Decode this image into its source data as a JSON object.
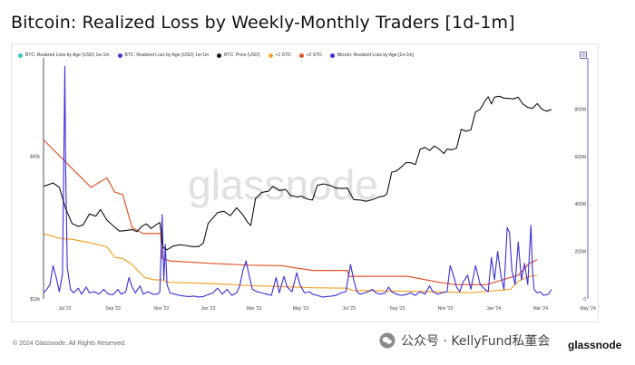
{
  "title": "Bitcoin: Realized Loss by Weekly-Monthly Traders [1d-1m]",
  "legend": [
    {
      "label": "BTC: Realized Loss by Age (USD) 1w-1m",
      "color": "#39c5c0"
    },
    {
      "label": "BTC: Realized Loss by Age (USD) 1w-1m",
      "color": "#3b3bd1"
    },
    {
      "label": "BTC: Price (USD)",
      "color": "#111111"
    },
    {
      "label": "+1 STD",
      "color": "#f2a32b"
    },
    {
      "label": "+2 STD",
      "color": "#e0552b"
    },
    {
      "label": "Bitcoin: Realized Loss by Age [1d-1m]",
      "color": "#3a2fd8"
    }
  ],
  "watermark": "glassnode",
  "footer": {
    "copyright": "© 2024 Glassnode. All Rights Reserved.",
    "wechat_text": "公众号 · KellyFund私董会",
    "brand": "glassnode"
  },
  "chart_data": {
    "type": "line",
    "x_tick_labels": [
      "Jul '22",
      "Sep '22",
      "Nov '22",
      "Jan '23",
      "Mar '23",
      "May '23",
      "Jul '23",
      "Sep '23",
      "Nov '23",
      "Jan '24",
      "Mar '24",
      "May '24"
    ],
    "left_axis_ticks": [
      "$40k",
      "$10k"
    ],
    "right_axis_ticks": [
      "0",
      "200M",
      "400M",
      "600M",
      "800M"
    ],
    "left_axis_scale": "log",
    "right_axis_range": [
      0,
      1000
    ],
    "left_axis_range": [
      10,
      100
    ],
    "x_range": [
      0,
      730
    ],
    "series": [
      {
        "name": "BTC: Price (USD)",
        "axis": "left",
        "color": "#111111",
        "points": [
          [
            0,
            29.8
          ],
          [
            12,
            30.8
          ],
          [
            20,
            29.5
          ],
          [
            28,
            24
          ],
          [
            36,
            20.8
          ],
          [
            44,
            20.2
          ],
          [
            50,
            20.5
          ],
          [
            58,
            22.8
          ],
          [
            66,
            22.3
          ],
          [
            72,
            23.8
          ],
          [
            80,
            21.5
          ],
          [
            88,
            20.3
          ],
          [
            96,
            19.3
          ],
          [
            104,
            19.4
          ],
          [
            112,
            19.6
          ],
          [
            118,
            19.2
          ],
          [
            124,
            20.2
          ],
          [
            130,
            20.7
          ],
          [
            136,
            19.8
          ],
          [
            142,
            20.5
          ],
          [
            147,
            21.0
          ],
          [
            151,
            16.5
          ],
          [
            156,
            16.1
          ],
          [
            164,
            16.7
          ],
          [
            172,
            16.9
          ],
          [
            180,
            16.8
          ],
          [
            188,
            16.6
          ],
          [
            196,
            16.6
          ],
          [
            202,
            17.2
          ],
          [
            208,
            20.8
          ],
          [
            214,
            21.9
          ],
          [
            220,
            23.1
          ],
          [
            228,
            23.4
          ],
          [
            236,
            22.4
          ],
          [
            244,
            24.2
          ],
          [
            252,
            22.6
          ],
          [
            258,
            21.0
          ],
          [
            262,
            20.4
          ],
          [
            268,
            26.5
          ],
          [
            276,
            28.1
          ],
          [
            284,
            28.4
          ],
          [
            290,
            29.8
          ],
          [
            298,
            28.6
          ],
          [
            306,
            28.9
          ],
          [
            312,
            27.3
          ],
          [
            320,
            26.9
          ],
          [
            326,
            27.1
          ],
          [
            334,
            26.3
          ],
          [
            340,
            26.1
          ],
          [
            346,
            30.1
          ],
          [
            354,
            30.5
          ],
          [
            362,
            30.1
          ],
          [
            370,
            29.3
          ],
          [
            378,
            29.2
          ],
          [
            384,
            29.3
          ],
          [
            392,
            26.2
          ],
          [
            400,
            26.1
          ],
          [
            408,
            25.8
          ],
          [
            416,
            26.2
          ],
          [
            424,
            26.9
          ],
          [
            430,
            27.1
          ],
          [
            434,
            27.7
          ],
          [
            440,
            34.2
          ],
          [
            446,
            34.6
          ],
          [
            452,
            35.9
          ],
          [
            458,
            37.5
          ],
          [
            464,
            37.5
          ],
          [
            470,
            36.8
          ],
          [
            476,
            42.7
          ],
          [
            482,
            43.5
          ],
          [
            488,
            42.2
          ],
          [
            494,
            44.1
          ],
          [
            500,
            42.8
          ],
          [
            506,
            41.0
          ],
          [
            510,
            42.8
          ],
          [
            516,
            42.5
          ],
          [
            522,
            43.2
          ],
          [
            528,
            51.8
          ],
          [
            534,
            50.9
          ],
          [
            540,
            51.5
          ],
          [
            546,
            61.3
          ],
          [
            552,
            63.0
          ],
          [
            558,
            68.3
          ],
          [
            562,
            71.1
          ],
          [
            566,
            66.3
          ],
          [
            570,
            70.8
          ],
          [
            576,
            71.4
          ],
          [
            582,
            70.2
          ],
          [
            588,
            69.9
          ],
          [
            594,
            69.6
          ],
          [
            600,
            70.8
          ],
          [
            606,
            66.2
          ],
          [
            612,
            64.1
          ],
          [
            618,
            63.5
          ],
          [
            624,
            66.5
          ],
          [
            630,
            63.0
          ],
          [
            636,
            61.8
          ],
          [
            642,
            62.9
          ]
        ]
      },
      {
        "name": "+2 STD",
        "axis": "right",
        "color": "#e0552b",
        "points": [
          [
            0,
            670
          ],
          [
            60,
            470
          ],
          [
            80,
            510
          ],
          [
            90,
            450
          ],
          [
            100,
            440
          ],
          [
            112,
            300
          ],
          [
            126,
            275
          ],
          [
            148,
            275
          ],
          [
            150,
            170
          ],
          [
            160,
            160
          ],
          [
            210,
            150
          ],
          [
            260,
            142
          ],
          [
            300,
            140
          ],
          [
            340,
            120
          ],
          [
            384,
            120
          ],
          [
            386,
            95
          ],
          [
            460,
            95
          ],
          [
            500,
            70
          ],
          [
            520,
            60
          ],
          [
            560,
            60
          ],
          [
            600,
            100
          ],
          [
            614,
            150
          ],
          [
            624,
            165
          ]
        ]
      },
      {
        "name": "+1 STD",
        "axis": "right",
        "color": "#f2a32b",
        "points": [
          [
            0,
            275
          ],
          [
            20,
            255
          ],
          [
            38,
            250
          ],
          [
            60,
            235
          ],
          [
            80,
            220
          ],
          [
            90,
            175
          ],
          [
            100,
            170
          ],
          [
            110,
            150
          ],
          [
            128,
            90
          ],
          [
            140,
            80
          ],
          [
            150,
            80
          ],
          [
            158,
            70
          ],
          [
            210,
            65
          ],
          [
            260,
            56
          ],
          [
            300,
            52
          ],
          [
            340,
            47
          ],
          [
            384,
            45
          ],
          [
            390,
            36
          ],
          [
            460,
            32
          ],
          [
            500,
            30
          ],
          [
            540,
            26
          ],
          [
            590,
            40
          ],
          [
            600,
            75
          ],
          [
            614,
            95
          ],
          [
            624,
            100
          ]
        ]
      },
      {
        "name": "Bitcoin: Realized Loss by Age [1d-1m]",
        "axis": "right",
        "color": "#3a2fd8",
        "points": [
          [
            0,
            25
          ],
          [
            4,
            40
          ],
          [
            8,
            60
          ],
          [
            12,
            140
          ],
          [
            16,
            90
          ],
          [
            20,
            30
          ],
          [
            24,
            105
          ],
          [
            27,
            980
          ],
          [
            28,
            540
          ],
          [
            30,
            130
          ],
          [
            34,
            40
          ],
          [
            38,
            25
          ],
          [
            44,
            45
          ],
          [
            48,
            20
          ],
          [
            54,
            50
          ],
          [
            58,
            25
          ],
          [
            64,
            30
          ],
          [
            70,
            20
          ],
          [
            76,
            40
          ],
          [
            82,
            20
          ],
          [
            88,
            18
          ],
          [
            94,
            40
          ],
          [
            98,
            20
          ],
          [
            104,
            30
          ],
          [
            108,
            90
          ],
          [
            112,
            50
          ],
          [
            116,
            25
          ],
          [
            122,
            55
          ],
          [
            126,
            20
          ],
          [
            132,
            30
          ],
          [
            138,
            20
          ],
          [
            144,
            20
          ],
          [
            147,
            30
          ],
          [
            150,
            355
          ],
          [
            151,
            200
          ],
          [
            152,
            80
          ],
          [
            154,
            230
          ],
          [
            156,
            60
          ],
          [
            160,
            25
          ],
          [
            166,
            20
          ],
          [
            172,
            15
          ],
          [
            178,
            12
          ],
          [
            184,
            10
          ],
          [
            190,
            12
          ],
          [
            196,
            8
          ],
          [
            202,
            10
          ],
          [
            208,
            18
          ],
          [
            214,
            25
          ],
          [
            220,
            45
          ],
          [
            226,
            20
          ],
          [
            232,
            40
          ],
          [
            238,
            15
          ],
          [
            244,
            25
          ],
          [
            248,
            55
          ],
          [
            252,
            120
          ],
          [
            256,
            160
          ],
          [
            260,
            95
          ],
          [
            264,
            40
          ],
          [
            270,
            30
          ],
          [
            276,
            25
          ],
          [
            282,
            20
          ],
          [
            288,
            15
          ],
          [
            294,
            90
          ],
          [
            298,
            25
          ],
          [
            304,
            95
          ],
          [
            308,
            50
          ],
          [
            314,
            30
          ],
          [
            320,
            110
          ],
          [
            324,
            60
          ],
          [
            330,
            25
          ],
          [
            336,
            30
          ],
          [
            340,
            20
          ],
          [
            346,
            15
          ],
          [
            352,
            8
          ],
          [
            358,
            10
          ],
          [
            364,
            12
          ],
          [
            370,
            15
          ],
          [
            376,
            25
          ],
          [
            382,
            30
          ],
          [
            388,
            145
          ],
          [
            392,
            80
          ],
          [
            396,
            30
          ],
          [
            400,
            20
          ],
          [
            406,
            25
          ],
          [
            410,
            30
          ],
          [
            416,
            40
          ],
          [
            420,
            25
          ],
          [
            426,
            20
          ],
          [
            432,
            25
          ],
          [
            436,
            50
          ],
          [
            440,
            30
          ],
          [
            446,
            20
          ],
          [
            452,
            15
          ],
          [
            458,
            18
          ],
          [
            464,
            25
          ],
          [
            470,
            15
          ],
          [
            476,
            30
          ],
          [
            482,
            20
          ],
          [
            488,
            55
          ],
          [
            492,
            30
          ],
          [
            498,
            20
          ],
          [
            504,
            25
          ],
          [
            510,
            30
          ],
          [
            514,
            140
          ],
          [
            518,
            100
          ],
          [
            522,
            50
          ],
          [
            526,
            30
          ],
          [
            530,
            70
          ],
          [
            536,
            100
          ],
          [
            540,
            40
          ],
          [
            546,
            140
          ],
          [
            552,
            60
          ],
          [
            558,
            40
          ],
          [
            562,
            30
          ],
          [
            566,
            175
          ],
          [
            570,
            80
          ],
          [
            574,
            200
          ],
          [
            578,
            100
          ],
          [
            582,
            40
          ],
          [
            586,
            300
          ],
          [
            589,
            280
          ],
          [
            592,
            120
          ],
          [
            596,
            60
          ],
          [
            600,
            240
          ],
          [
            604,
            80
          ],
          [
            608,
            150
          ],
          [
            612,
            60
          ],
          [
            616,
            310
          ],
          [
            618,
            120
          ],
          [
            620,
            40
          ],
          [
            624,
            25
          ],
          [
            628,
            30
          ],
          [
            632,
            15
          ],
          [
            638,
            20
          ],
          [
            642,
            40
          ]
        ]
      }
    ]
  }
}
